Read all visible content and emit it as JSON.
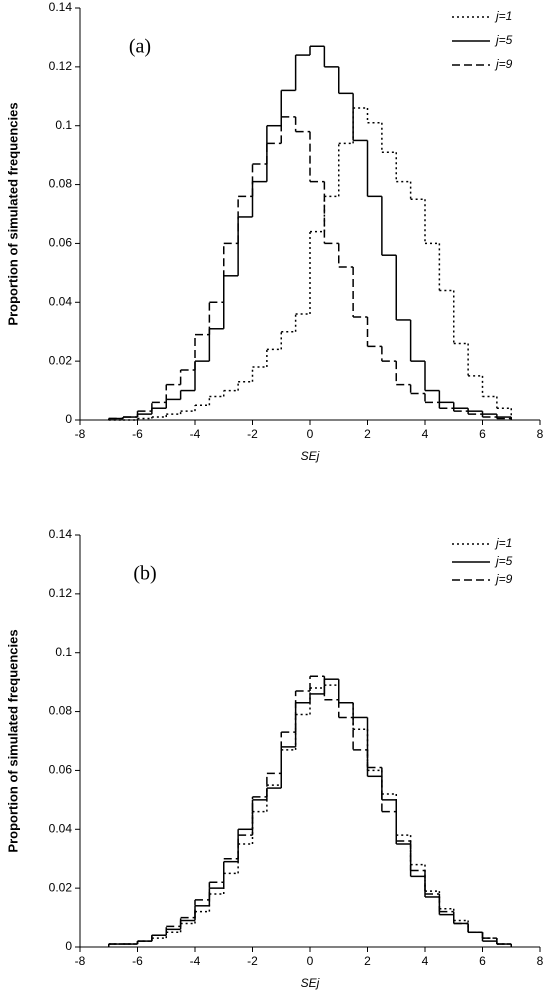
{
  "chart_data": [
    {
      "type": "histogram",
      "annotation": "(a)",
      "x_label": "SEj",
      "y_label": "Proportion of simulated frequencies",
      "bins": [
        -7,
        -6.5,
        -6,
        -5.5,
        -5,
        -4.5,
        -4,
        -3.5,
        -3,
        -2.5,
        -2,
        -1.5,
        -1,
        -0.5,
        0,
        0.5,
        1,
        1.5,
        2,
        2.5,
        3,
        3.5,
        4,
        4.5,
        5,
        5.5,
        6,
        6.5,
        7
      ],
      "series": [
        {
          "name": "j=1",
          "color": "#000000",
          "dash": "dotted",
          "values": [
            0,
            0,
            0.0005,
            0.001,
            0.002,
            0.003,
            0.005,
            0.008,
            0.01,
            0.013,
            0.018,
            0.024,
            0.03,
            0.036,
            0.064,
            0.076,
            0.094,
            0.106,
            0.101,
            0.091,
            0.081,
            0.075,
            0.06,
            0.044,
            0.026,
            0.015,
            0.008,
            0.004
          ]
        },
        {
          "name": "j=5",
          "color": "#000000",
          "dash": "solid",
          "values": [
            0.0005,
            0.001,
            0.002,
            0.004,
            0.007,
            0.01,
            0.02,
            0.031,
            0.049,
            0.069,
            0.081,
            0.1,
            0.112,
            0.124,
            0.127,
            0.12,
            0.111,
            0.095,
            0.076,
            0.056,
            0.034,
            0.02,
            0.01,
            0.006,
            0.004,
            0.003,
            0.002,
            0.001
          ]
        },
        {
          "name": "j=9",
          "color": "#000000",
          "dash": "dashed",
          "values": [
            0.0005,
            0.001,
            0.003,
            0.006,
            0.012,
            0.017,
            0.029,
            0.04,
            0.06,
            0.076,
            0.087,
            0.094,
            0.103,
            0.098,
            0.081,
            0.06,
            0.052,
            0.035,
            0.025,
            0.02,
            0.012,
            0.009,
            0.006,
            0.004,
            0.003,
            0.002,
            0.001,
            0.0005
          ]
        }
      ],
      "xlim": [
        -8,
        8
      ],
      "xticks": [
        -8,
        -6,
        -4,
        -2,
        0,
        2,
        4,
        6,
        8
      ],
      "ylim": [
        0,
        0.14
      ],
      "yticks": [
        0,
        0.02,
        0.04,
        0.06,
        0.08,
        0.1,
        0.12,
        0.14
      ],
      "legend": "upper right"
    },
    {
      "type": "histogram",
      "annotation": "(b)",
      "x_label": "SEj",
      "y_label": "Proportion of simulated frequencies",
      "bins": [
        -7,
        -6.5,
        -6,
        -5.5,
        -5,
        -4.5,
        -4,
        -3.5,
        -3,
        -2.5,
        -2,
        -1.5,
        -1,
        -0.5,
        0,
        0.5,
        1,
        1.5,
        2,
        2.5,
        3,
        3.5,
        4,
        4.5,
        5,
        5.5,
        6,
        6.5,
        7
      ],
      "series": [
        {
          "name": "j=1",
          "color": "#000000",
          "dash": "dotted",
          "values": [
            0.001,
            0.001,
            0.002,
            0.003,
            0.005,
            0.008,
            0.012,
            0.018,
            0.025,
            0.035,
            0.046,
            0.055,
            0.067,
            0.079,
            0.088,
            0.089,
            0.083,
            0.074,
            0.06,
            0.052,
            0.038,
            0.028,
            0.019,
            0.013,
            0.009,
            0.005,
            0.003,
            0.001
          ]
        },
        {
          "name": "j=5",
          "color": "#000000",
          "dash": "solid",
          "values": [
            0.001,
            0.001,
            0.002,
            0.004,
            0.006,
            0.009,
            0.014,
            0.02,
            0.029,
            0.04,
            0.05,
            0.054,
            0.068,
            0.083,
            0.086,
            0.091,
            0.083,
            0.078,
            0.058,
            0.05,
            0.035,
            0.024,
            0.017,
            0.011,
            0.008,
            0.005,
            0.002,
            0.001
          ]
        },
        {
          "name": "j=9",
          "color": "#000000",
          "dash": "dashed",
          "values": [
            0.001,
            0.001,
            0.002,
            0.004,
            0.007,
            0.01,
            0.016,
            0.022,
            0.03,
            0.038,
            0.051,
            0.059,
            0.073,
            0.087,
            0.092,
            0.084,
            0.078,
            0.067,
            0.061,
            0.046,
            0.036,
            0.026,
            0.018,
            0.012,
            0.008,
            0.005,
            0.003,
            0.001
          ]
        }
      ],
      "xlim": [
        -8,
        8
      ],
      "xticks": [
        -8,
        -6,
        -4,
        -2,
        0,
        2,
        4,
        6,
        8
      ],
      "ylim": [
        0,
        0.14
      ],
      "yticks": [
        0,
        0.02,
        0.04,
        0.06,
        0.08,
        0.1,
        0.12,
        0.14
      ],
      "legend": "upper right"
    }
  ]
}
